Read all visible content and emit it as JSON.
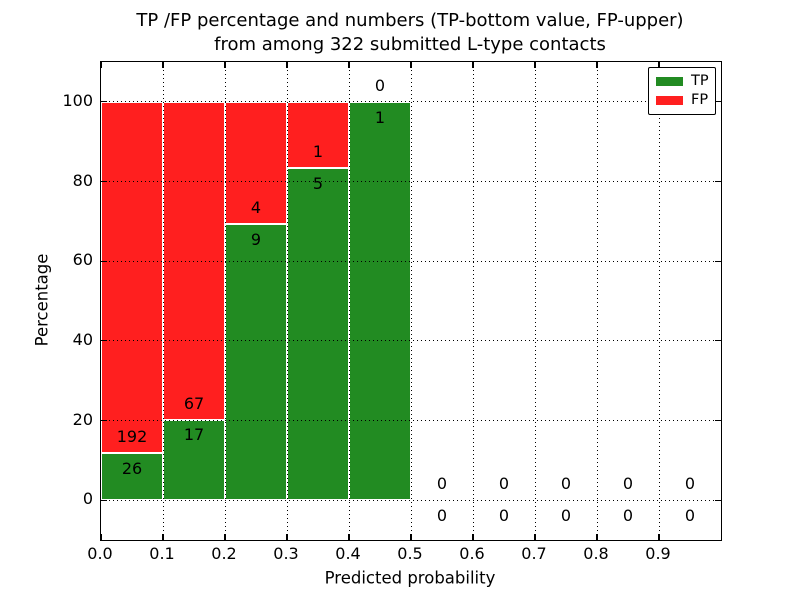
{
  "chart_data": {
    "type": "bar",
    "variant": "stacked-percentage-histogram",
    "title": "TP /FP percentage and numbers (TP-bottom value, FP-upper)\nfrom among 322 submitted L-type contacts",
    "title_line1": "TP /FP percentage and numbers (TP-bottom value, FP-upper)",
    "title_line2": "from among 322 submitted L-type contacts",
    "xlabel": "Predicted probability",
    "ylabel": "Percentage",
    "total_submitted_contacts": 322,
    "xlim": [
      0.0,
      1.0
    ],
    "ylim": [
      -10,
      110
    ],
    "x_ticks": [
      "0.0",
      "0.1",
      "0.2",
      "0.3",
      "0.4",
      "0.5",
      "0.6",
      "0.7",
      "0.8",
      "0.9"
    ],
    "y_ticks": [
      "0",
      "20",
      "40",
      "60",
      "80",
      "100"
    ],
    "grid": "dotted-black",
    "bin_width": 0.1,
    "categories": [
      "0.0-0.1",
      "0.1-0.2",
      "0.2-0.3",
      "0.3-0.4",
      "0.4-0.5",
      "0.5-0.6",
      "0.6-0.7",
      "0.7-0.8",
      "0.8-0.9",
      "0.9-1.0"
    ],
    "series": [
      {
        "name": "TP",
        "color": "#228b22",
        "values": [
          26,
          17,
          9,
          5,
          1,
          0,
          0,
          0,
          0,
          0
        ]
      },
      {
        "name": "FP",
        "color": "#ff1f1f",
        "values": [
          192,
          67,
          4,
          1,
          0,
          0,
          0,
          0,
          0,
          0
        ]
      }
    ],
    "tp_percent_of_bin": [
      11.9,
      20.2,
      69.2,
      83.3,
      100.0,
      0.0,
      0.0,
      0.0,
      0.0,
      0.0
    ],
    "legend": {
      "position": "upper-right",
      "entries": [
        {
          "label": "TP",
          "color": "#228b22"
        },
        {
          "label": "FP",
          "color": "#ff1f1f"
        }
      ]
    }
  },
  "colors": {
    "tp": "#228b22",
    "fp": "#ff1f1f",
    "background": "#ffffff",
    "axis": "#000000",
    "text": "#000000"
  }
}
